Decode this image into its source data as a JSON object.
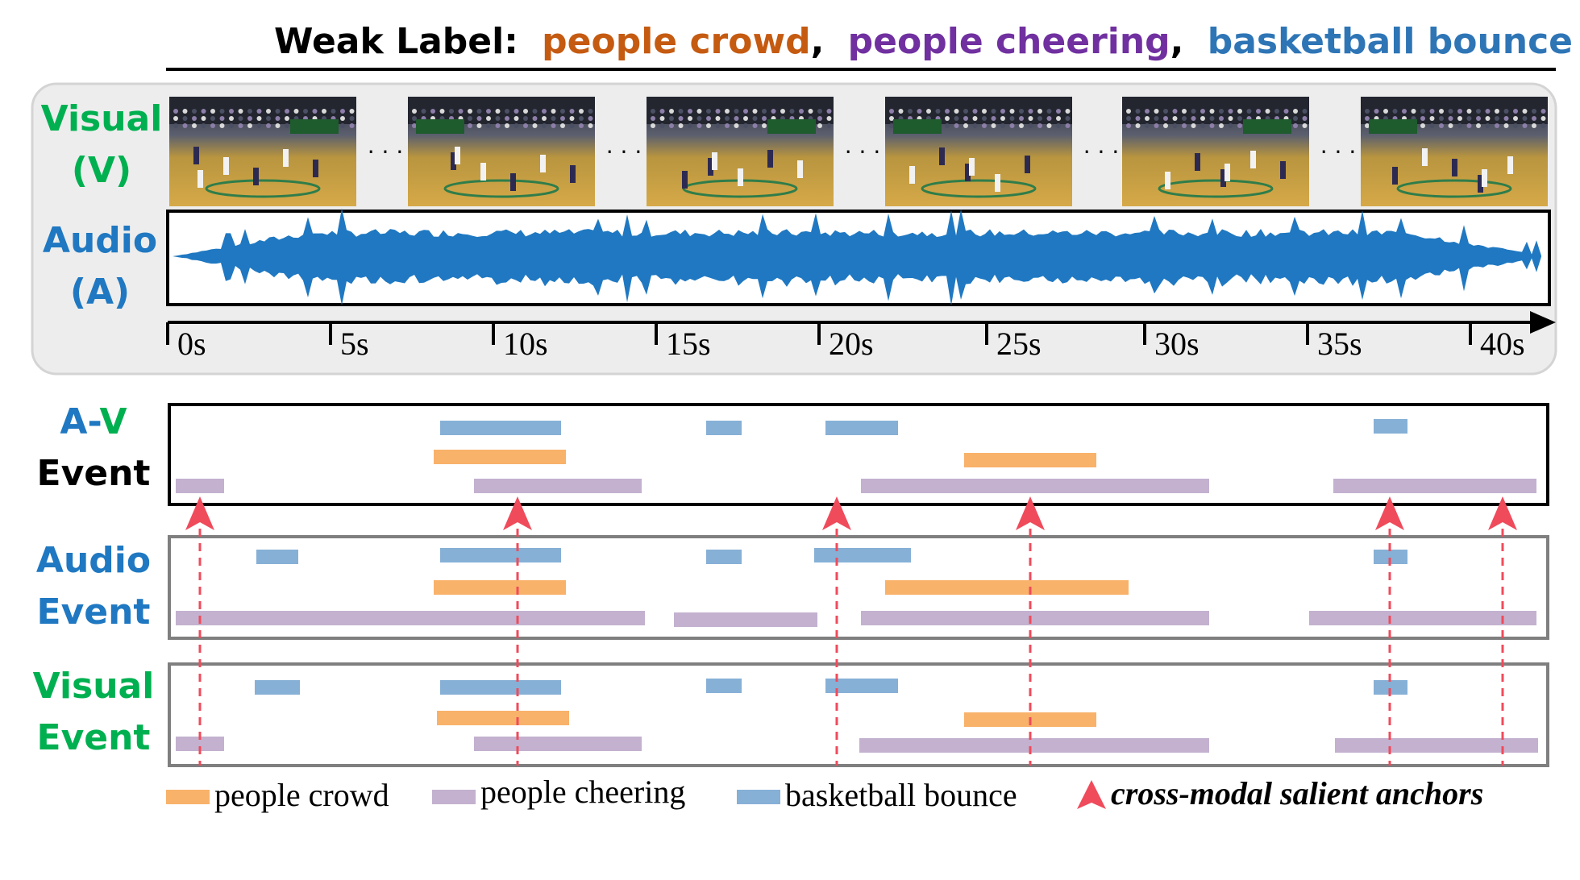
{
  "header": {
    "prefix": "Weak Label:",
    "labels": [
      {
        "text": "people crowd",
        "color": "#c55a11"
      },
      {
        "text": "people cheering",
        "color": "#7030a0"
      },
      {
        "text": "basketball bounce",
        "color": "#2e75b6"
      }
    ],
    "separator": ","
  },
  "modalities": {
    "visual": {
      "line1": "Visual",
      "line2": "(V)",
      "color": "#00b050"
    },
    "audio": {
      "line1": "Audio",
      "line2": "(A)",
      "color": "#1f78c1"
    }
  },
  "frames": {
    "count": 6,
    "ellipsis": "· · ·"
  },
  "timeline": {
    "ticks": [
      "0s",
      "5s",
      "10s",
      "15s",
      "20s",
      "25s",
      "30s",
      "35s",
      "40s"
    ]
  },
  "panels": [
    {
      "id": "av",
      "label_a": "A",
      "label_dash": "-",
      "label_v": "V",
      "label2": "Event"
    },
    {
      "id": "audio",
      "label1": "Audio",
      "label2": "Event"
    },
    {
      "id": "visual",
      "label1": "Visual",
      "label2": "Event"
    }
  ],
  "colors": {
    "crowd": "#f8b26a",
    "cheering": "#c3b1cf",
    "bounce": "#86b0d6",
    "anchor": "#ef4b5b",
    "av_letter_a": "#1f78c1",
    "av_letter_v": "#00b050"
  },
  "legend": {
    "crowd": "people crowd",
    "cheering": "people cheering",
    "bounce": "basketball bounce",
    "anchors": "cross-modal salient anchors"
  }
}
